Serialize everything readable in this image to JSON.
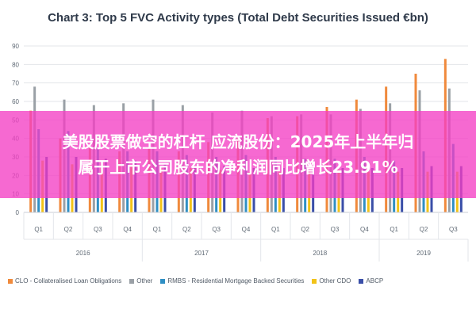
{
  "overlay": {
    "line1": "美股股票做空的杠杆 应流股份：2025年上半年归",
    "line2": "属于上市公司股东的净利润同比增长23.91%"
  },
  "chart_data": {
    "type": "bar",
    "title": "Chart 3: Top 5 FVC Activity types (Total Debt Securities Issued €bn)",
    "ylim": [
      0,
      90
    ],
    "yticks": [
      0,
      10,
      20,
      30,
      40,
      50,
      60,
      70,
      80,
      90
    ],
    "grid": true,
    "legend_position": "bottom",
    "categories": [
      "Q1",
      "Q2",
      "Q3",
      "Q4",
      "Q1",
      "Q2",
      "Q3",
      "Q4",
      "Q1",
      "Q2",
      "Q3",
      "Q4",
      "Q1",
      "Q2",
      "Q3"
    ],
    "years": [
      {
        "label": "2016",
        "start": 0,
        "end": 3
      },
      {
        "label": "2017",
        "start": 4,
        "end": 7
      },
      {
        "label": "2018",
        "start": 8,
        "end": 11
      },
      {
        "label": "2019",
        "start": 12,
        "end": 14
      }
    ],
    "series": [
      {
        "name": "CLO - Collateralised Loan Obligations",
        "color": "#f08a3c",
        "values": [
          55,
          40,
          35,
          33,
          35,
          33,
          38,
          40,
          51,
          52,
          57,
          61,
          68,
          75,
          83
        ]
      },
      {
        "name": "Other",
        "color": "#9aa0a6",
        "values": [
          68,
          61,
          58,
          59,
          61,
          58,
          54,
          55,
          52,
          53,
          53,
          56,
          59,
          66,
          67
        ]
      },
      {
        "name": "RMBS - Residential Mortgage Backed Securities",
        "color": "#2f8fc4",
        "values": [
          45,
          44,
          35,
          33,
          33,
          31,
          30,
          31,
          30,
          29,
          29,
          30,
          28,
          33,
          37
        ]
      },
      {
        "name": "Other CDO",
        "color": "#f2c318",
        "values": [
          28,
          26,
          26,
          25,
          24,
          24,
          23,
          22,
          22,
          22,
          23,
          22,
          22,
          22,
          22
        ]
      },
      {
        "name": "ABCP",
        "color": "#3a4fa8",
        "values": [
          30,
          30,
          29,
          28,
          26,
          25,
          25,
          24,
          24,
          24,
          24,
          24,
          24,
          25,
          25
        ]
      }
    ]
  }
}
